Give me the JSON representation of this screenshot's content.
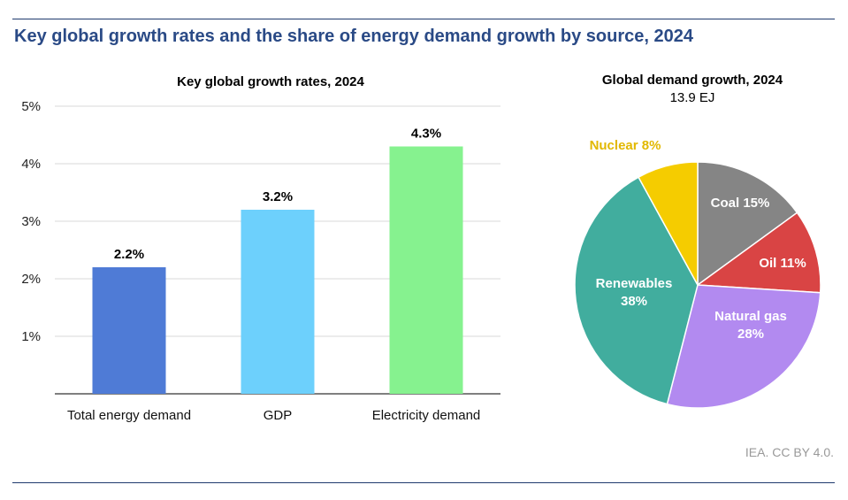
{
  "header": {
    "title": "Key global growth rates and the share of energy demand growth by source, 2024",
    "credit": "IEA. CC BY 4.0."
  },
  "chart_data": [
    {
      "type": "bar",
      "title": "Key global growth rates, 2024",
      "categories": [
        "Total energy demand",
        "GDP",
        "Electricity demand"
      ],
      "values": [
        2.2,
        3.2,
        4.3
      ],
      "value_labels": [
        "2.2%",
        "3.2%",
        "4.3%"
      ],
      "colors": [
        "#4f7bd6",
        "#6dd0fc",
        "#86f28f"
      ],
      "ylim": [
        0,
        5
      ],
      "y_ticks": [
        1,
        2,
        3,
        4,
        5
      ],
      "y_tick_labels": [
        "1%",
        "2%",
        "3%",
        "4%",
        "5%"
      ],
      "grid": true
    },
    {
      "type": "pie",
      "title": "Global demand growth, 2024",
      "subtitle": "13.9 EJ",
      "slices": [
        {
          "label": "Coal",
          "display": "Coal 15%",
          "value": 15,
          "color": "#858585",
          "label_color": "#ffffff"
        },
        {
          "label": "Oil",
          "display": "Oil 11%",
          "value": 11,
          "color": "#d94444",
          "label_color": "#ffffff"
        },
        {
          "label": "Natural gas",
          "display": "Natural gas\n28%",
          "value": 28,
          "color": "#b28af0",
          "label_color": "#ffffff"
        },
        {
          "label": "Renewables",
          "display": "Renewables\n38%",
          "value": 38,
          "color": "#41ad9e",
          "label_color": "#ffffff"
        },
        {
          "label": "Nuclear",
          "display": "Nuclear 8%",
          "value": 8,
          "color": "#f5cc00",
          "label_color": "#e2b800"
        }
      ]
    }
  ]
}
